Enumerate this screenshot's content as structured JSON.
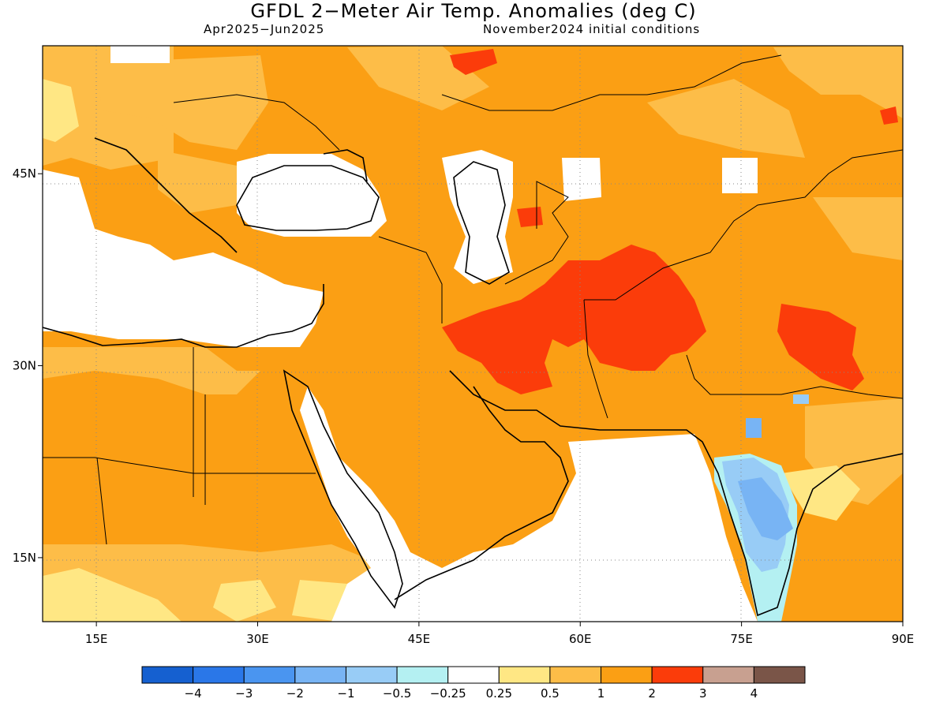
{
  "title": "GFDL 2−Meter Air Temp. Anomalies (deg C)",
  "period": "Apr2025−Jun2025",
  "init": "November2024 initial conditions",
  "map": {
    "lon_range": [
      10,
      90
    ],
    "lat_range": [
      10,
      55
    ],
    "lon_ticks": [
      {
        "lon": 15,
        "label": "15E"
      },
      {
        "lon": 30,
        "label": "30E"
      },
      {
        "lon": 45,
        "label": "45E"
      },
      {
        "lon": 60,
        "label": "60E"
      },
      {
        "lon": 75,
        "label": "75E"
      },
      {
        "lon": 90,
        "label": "90E"
      }
    ],
    "lat_ticks": [
      {
        "lat": 45,
        "label": "45N"
      },
      {
        "lat": 30,
        "label": "30N"
      },
      {
        "lat": 15,
        "label": "15N"
      }
    ],
    "gridlines": "dotted"
  },
  "colorbar": {
    "colors": [
      "#1560d0",
      "#2a77e8",
      "#4a95f0",
      "#78b4f4",
      "#98ccf6",
      "#b4f0f2",
      "#ffffff",
      "#ffe784",
      "#fdbd48",
      "#fb9f14",
      "#fb3c0a",
      "#c8a090",
      "#7a5548"
    ],
    "labels": [
      "−4",
      "−3",
      "−2",
      "−1",
      "−0.5",
      "−0.25",
      "0.25",
      "0.5",
      "1",
      "2",
      "3",
      "4"
    ]
  }
}
